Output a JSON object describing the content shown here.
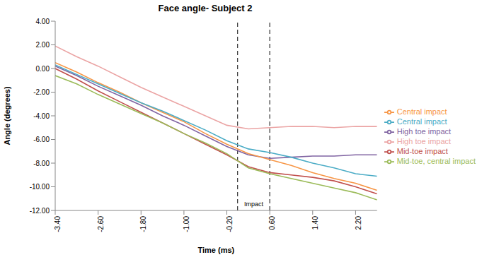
{
  "chart_data": {
    "type": "line",
    "title": "Face angle- Subject 2",
    "x_label": "Time (ms)",
    "y_label": "Angle (degrees)",
    "x": [
      -3.4,
      -3.0,
      -2.6,
      -2.2,
      -1.8,
      -1.4,
      -1.0,
      -0.6,
      -0.2,
      0.2,
      0.6,
      1.0,
      1.4,
      1.8,
      2.2,
      2.6
    ],
    "series": [
      {
        "name": "Mid-toe impact",
        "color": "#c0504d",
        "values": [
          0.0,
          -0.9,
          -1.9,
          -2.8,
          -3.7,
          -4.6,
          -5.5,
          -6.4,
          -7.3,
          -8.3,
          -8.8,
          -9.0,
          -9.2,
          -9.5,
          -10.0,
          -10.6
        ]
      },
      {
        "name": "Mid-toe, central impact",
        "color": "#9bbb59",
        "values": [
          -0.6,
          -1.3,
          -2.2,
          -3.0,
          -3.8,
          -4.6,
          -5.5,
          -6.3,
          -7.2,
          -8.4,
          -8.9,
          -9.3,
          -9.7,
          -10.1,
          -10.5,
          -11.1
        ]
      },
      {
        "name": "High toe impact",
        "color": "#8064a2",
        "values": [
          0.2,
          -0.6,
          -1.5,
          -2.3,
          -3.1,
          -4.0,
          -4.8,
          -5.7,
          -6.6,
          -7.3,
          -7.6,
          -7.5,
          -7.4,
          -7.4,
          -7.3,
          -7.3
        ]
      },
      {
        "name": "Central impact",
        "color": "#f79646",
        "values": [
          0.5,
          -0.3,
          -1.2,
          -2.0,
          -2.9,
          -3.7,
          -4.5,
          -5.5,
          -6.4,
          -7.2,
          -7.7,
          -8.2,
          -8.8,
          -9.3,
          -9.7,
          -10.3
        ]
      },
      {
        "name": "Central impact",
        "color": "#4bacc6",
        "values": [
          0.3,
          -0.5,
          -1.3,
          -2.1,
          -2.9,
          -3.6,
          -4.4,
          -5.2,
          -6.1,
          -6.8,
          -7.1,
          -7.5,
          -8.0,
          -8.4,
          -8.9,
          -9.1
        ]
      },
      {
        "name": "High toe impact",
        "color": "#eba4a4",
        "values": [
          1.9,
          1.0,
          0.2,
          -0.7,
          -1.6,
          -2.4,
          -3.2,
          -4.0,
          -4.8,
          -5.1,
          -5.0,
          -4.9,
          -4.9,
          -5.0,
          -4.9,
          -4.9
        ]
      }
    ],
    "xlim": [
      -3.4,
      2.6
    ],
    "xticks": [
      {
        "value": -3.4,
        "label": "-3.40"
      },
      {
        "value": -2.6,
        "label": "-2.60"
      },
      {
        "value": -1.8,
        "label": "-1.80"
      },
      {
        "value": -1.0,
        "label": "-1.00"
      },
      {
        "value": -0.2,
        "label": "-0.20"
      },
      {
        "value": 0.6,
        "label": "0.60"
      },
      {
        "value": 1.4,
        "label": "1.40"
      },
      {
        "value": 2.2,
        "label": "2.20"
      }
    ],
    "ylim": [
      -12,
      4
    ],
    "yticks": [
      {
        "value": -12,
        "label": "-12.00"
      },
      {
        "value": -10,
        "label": "-10.00"
      },
      {
        "value": -8,
        "label": "-8.00"
      },
      {
        "value": -6,
        "label": "-6.00"
      },
      {
        "value": -4,
        "label": "-4.00"
      },
      {
        "value": -2,
        "label": "-2.00"
      },
      {
        "value": 0,
        "label": "0.00"
      },
      {
        "value": 2,
        "label": "2.00"
      },
      {
        "value": 4,
        "label": "4.00"
      }
    ],
    "impact": {
      "label": "Impact",
      "range": [
        0,
        0.6
      ]
    },
    "grid": false,
    "legend": "right"
  }
}
